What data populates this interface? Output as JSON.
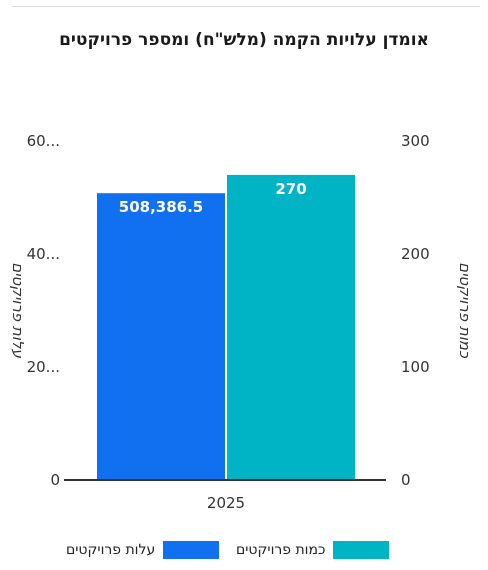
{
  "title": "אומדן עלויות הקמה (מלש\"ח) ומספר פרויקטים",
  "chart_data": {
    "type": "bar",
    "categories": [
      "2025"
    ],
    "y_left": {
      "label": "עלות פרויקטים",
      "ticks": [
        "0",
        "20...",
        "40...",
        "60..."
      ],
      "tick_values": [
        0,
        20,
        40,
        60
      ]
    },
    "y_right": {
      "label": "כמות פרויקטים",
      "ticks": [
        "0",
        "100",
        "200",
        "300"
      ],
      "tick_values": [
        0,
        100,
        200,
        300
      ],
      "ylim": [
        0,
        300
      ]
    },
    "series": [
      {
        "name": "עלות פרויקטים",
        "values": [
          508386.5
        ],
        "value_labels": [
          "508,386.5"
        ],
        "color": "#1170f0",
        "axis": "left"
      },
      {
        "name": "כמות פרויקטים",
        "values": [
          270
        ],
        "value_labels": [
          "270"
        ],
        "color": "#00b4c6",
        "axis": "right"
      }
    ],
    "legend_placement": "bottom"
  }
}
